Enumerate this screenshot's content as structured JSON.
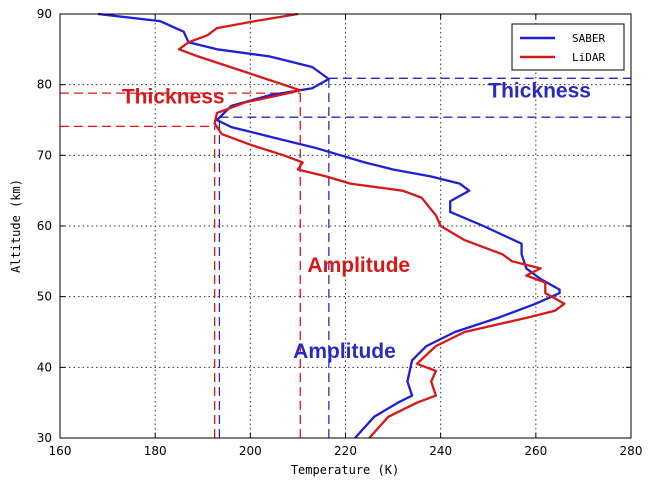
{
  "chart_data": {
    "type": "line",
    "xlabel": "Temperature (K)",
    "ylabel": "Altitude (km)",
    "xlim": [
      160,
      280
    ],
    "ylim": [
      30,
      90
    ],
    "xticks": [
      160,
      180,
      200,
      220,
      240,
      260,
      280
    ],
    "yticks": [
      30,
      40,
      50,
      60,
      70,
      80,
      90
    ],
    "grid": true,
    "legend_position": "top-right",
    "series": [
      {
        "name": "SABER",
        "color": "#1f1fd6",
        "points": [
          [
            222,
            30
          ],
          [
            226,
            33
          ],
          [
            231,
            35
          ],
          [
            234,
            36
          ],
          [
            233,
            38
          ],
          [
            234,
            41
          ],
          [
            237,
            43
          ],
          [
            243,
            45
          ],
          [
            252,
            47
          ],
          [
            260,
            49
          ],
          [
            265,
            50.5
          ],
          [
            265,
            51
          ],
          [
            261,
            52.5
          ],
          [
            258,
            54
          ],
          [
            257,
            56
          ],
          [
            257,
            57.5
          ],
          [
            249,
            60
          ],
          [
            242,
            62
          ],
          [
            242,
            63.5
          ],
          [
            246,
            65
          ],
          [
            244,
            66
          ],
          [
            238,
            67
          ],
          [
            230,
            68
          ],
          [
            224,
            69
          ],
          [
            214,
            71
          ],
          [
            205,
            72.5
          ],
          [
            196,
            74
          ],
          [
            193,
            75
          ],
          [
            196,
            77
          ],
          [
            204,
            78.5
          ],
          [
            213,
            79.5
          ],
          [
            216.5,
            80.8
          ],
          [
            213,
            82.5
          ],
          [
            204,
            84
          ],
          [
            193,
            85
          ],
          [
            187,
            86
          ],
          [
            186,
            87.5
          ],
          [
            181,
            89
          ],
          [
            168,
            90
          ]
        ]
      },
      {
        "name": "LiDAR",
        "color": "#d81818",
        "points": [
          [
            225,
            30
          ],
          [
            229,
            33
          ],
          [
            235,
            35
          ],
          [
            239,
            36
          ],
          [
            238,
            38
          ],
          [
            239,
            39.5
          ],
          [
            235,
            40.5
          ],
          [
            239,
            43
          ],
          [
            245,
            45
          ],
          [
            258,
            47
          ],
          [
            264,
            48
          ],
          [
            266,
            49
          ],
          [
            262,
            50.5
          ],
          [
            262,
            52
          ],
          [
            258,
            53
          ],
          [
            261,
            54
          ],
          [
            255,
            55
          ],
          [
            253,
            56
          ],
          [
            245,
            58
          ],
          [
            240,
            60
          ],
          [
            239,
            61.5
          ],
          [
            236,
            64
          ],
          [
            232,
            65
          ],
          [
            221,
            66
          ],
          [
            216,
            67
          ],
          [
            210,
            68
          ],
          [
            211,
            69
          ],
          [
            207,
            70
          ],
          [
            200,
            71.5
          ],
          [
            194,
            73
          ],
          [
            192.5,
            74.5
          ],
          [
            193,
            76
          ],
          [
            199,
            77.5
          ],
          [
            206,
            78.5
          ],
          [
            210.5,
            79.2
          ],
          [
            207,
            80
          ],
          [
            198,
            82
          ],
          [
            189,
            84
          ],
          [
            185,
            85
          ],
          [
            187,
            86
          ],
          [
            191,
            87
          ],
          [
            193,
            88
          ],
          [
            201,
            89
          ],
          [
            210,
            90
          ]
        ]
      }
    ],
    "annotations": [
      {
        "text": "Thickness",
        "color": "#d81818",
        "x": 173,
        "y": 77.3
      },
      {
        "text": "Thickness",
        "color": "#2a2ac0",
        "x": 250,
        "y": 78.2
      },
      {
        "text": "Amplitude",
        "color": "#d81818",
        "x": 212,
        "y": 53.5
      },
      {
        "text": "Amplitude",
        "color": "#2a2ac0",
        "x": 209,
        "y": 41.3
      }
    ],
    "reference_lines": [
      {
        "color": "#d81818",
        "orient": "h",
        "value": 78.8,
        "from": 160,
        "to": 210.5
      },
      {
        "color": "#d81818",
        "orient": "h",
        "value": 74.1,
        "from": 160,
        "to": 192.5
      },
      {
        "color": "#2a2ac0",
        "orient": "h",
        "value": 80.9,
        "from": 216.5,
        "to": 280
      },
      {
        "color": "#2a2ac0",
        "orient": "h",
        "value": 75.4,
        "from": 193.5,
        "to": 280
      },
      {
        "color": "#d81818",
        "orient": "v",
        "value": 192.5,
        "from": 30,
        "to": 74.1
      },
      {
        "color": "#d81818",
        "orient": "v",
        "value": 210.5,
        "from": 30,
        "to": 78.8
      },
      {
        "color": "#2a2ac0",
        "orient": "v",
        "value": 193.5,
        "from": 30,
        "to": 75.4
      },
      {
        "color": "#2a2ac0",
        "orient": "v",
        "value": 216.5,
        "from": 30,
        "to": 80.9
      }
    ]
  }
}
